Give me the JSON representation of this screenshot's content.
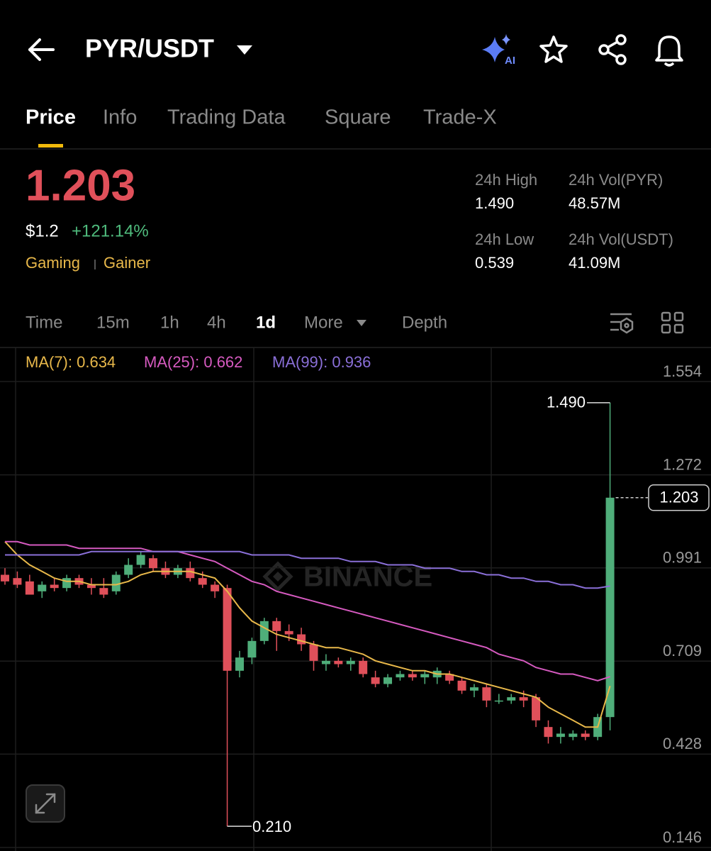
{
  "header": {
    "pair": "PYR/USDT",
    "ai_badge": "AI"
  },
  "tabs": [
    "Price",
    "Info",
    "Trading Data",
    "Square",
    "Trade-X"
  ],
  "ticker": {
    "price": "1.203",
    "usd_price": "$1.2",
    "change": "+121.14%",
    "tags": [
      "Gaming",
      "Gainer"
    ]
  },
  "stats": [
    {
      "label": "24h High",
      "value": "1.490"
    },
    {
      "label": "24h Vol(PYR)",
      "value": "48.57M"
    },
    {
      "label": "24h Low",
      "value": "0.539"
    },
    {
      "label": "24h Vol(USDT)",
      "value": "41.09M"
    }
  ],
  "intervals": [
    "Time",
    "15m",
    "1h",
    "4h",
    "1d",
    "More",
    "Depth"
  ],
  "chart_data": {
    "type": "candlestick",
    "watermark": "BINANCE",
    "up_color": "#4fae7a",
    "down_color": "#e0505a",
    "ylim": [
      0.146,
      1.554
    ],
    "yticks": [
      1.554,
      1.272,
      0.991,
      0.709,
      0.428,
      0.146
    ],
    "grid": true,
    "open": [
      0.97,
      0.96,
      0.95,
      0.92,
      0.94,
      0.93,
      0.96,
      0.94,
      0.93,
      0.92,
      0.97,
      1.0,
      1.02,
      0.99,
      0.97,
      0.99,
      0.96,
      0.94,
      0.93,
      0.68,
      0.72,
      0.77,
      0.83,
      0.8,
      0.79,
      0.76,
      0.7,
      0.71,
      0.7,
      0.71,
      0.66,
      0.64,
      0.66,
      0.67,
      0.66,
      0.66,
      0.67,
      0.65,
      0.62,
      0.63,
      0.59,
      0.59,
      0.6,
      0.6,
      0.51,
      0.48,
      0.48,
      0.49,
      0.48,
      0.54
    ],
    "high": [
      0.99,
      0.98,
      0.97,
      0.95,
      0.96,
      0.97,
      0.97,
      0.96,
      0.96,
      0.98,
      1.02,
      1.04,
      1.03,
      1.01,
      1.0,
      1.01,
      0.98,
      0.95,
      0.94,
      0.74,
      0.78,
      0.84,
      0.84,
      0.82,
      0.81,
      0.77,
      0.73,
      0.72,
      0.72,
      0.72,
      0.68,
      0.67,
      0.68,
      0.68,
      0.68,
      0.69,
      0.68,
      0.66,
      0.64,
      0.64,
      0.61,
      0.61,
      0.62,
      0.61,
      0.53,
      0.51,
      0.5,
      0.5,
      0.55,
      1.49
    ],
    "low": [
      0.94,
      0.93,
      0.91,
      0.9,
      0.92,
      0.92,
      0.93,
      0.91,
      0.9,
      0.91,
      0.96,
      0.99,
      0.98,
      0.96,
      0.96,
      0.95,
      0.93,
      0.9,
      0.21,
      0.66,
      0.7,
      0.76,
      0.74,
      0.77,
      0.74,
      0.68,
      0.68,
      0.69,
      0.68,
      0.66,
      0.63,
      0.63,
      0.65,
      0.65,
      0.64,
      0.64,
      0.64,
      0.61,
      0.6,
      0.57,
      0.58,
      0.58,
      0.57,
      0.51,
      0.46,
      0.46,
      0.47,
      0.47,
      0.47,
      0.5
    ],
    "close": [
      0.95,
      0.94,
      0.91,
      0.94,
      0.93,
      0.96,
      0.94,
      0.93,
      0.91,
      0.97,
      1.0,
      1.03,
      0.99,
      0.97,
      0.99,
      0.96,
      0.94,
      0.92,
      0.68,
      0.72,
      0.77,
      0.83,
      0.8,
      0.79,
      0.76,
      0.71,
      0.71,
      0.7,
      0.71,
      0.67,
      0.64,
      0.66,
      0.67,
      0.66,
      0.67,
      0.68,
      0.65,
      0.62,
      0.63,
      0.59,
      0.59,
      0.6,
      0.59,
      0.53,
      0.48,
      0.49,
      0.49,
      0.48,
      0.54,
      1.203
    ],
    "series": [
      {
        "name": "MA(7): 0.634",
        "color": "#e8b84a",
        "values": [
          1.07,
          1.03,
          1.0,
          0.98,
          0.96,
          0.95,
          0.95,
          0.94,
          0.94,
          0.94,
          0.95,
          0.97,
          0.98,
          0.98,
          0.98,
          0.98,
          0.97,
          0.96,
          0.92,
          0.87,
          0.83,
          0.81,
          0.79,
          0.78,
          0.77,
          0.76,
          0.75,
          0.75,
          0.74,
          0.73,
          0.71,
          0.7,
          0.69,
          0.68,
          0.68,
          0.67,
          0.67,
          0.66,
          0.65,
          0.64,
          0.63,
          0.62,
          0.61,
          0.6,
          0.57,
          0.55,
          0.53,
          0.51,
          0.51,
          0.634
        ]
      },
      {
        "name": "MA(25): 0.662",
        "color": "#d65ac0",
        "values": [
          1.07,
          1.07,
          1.06,
          1.06,
          1.06,
          1.06,
          1.05,
          1.05,
          1.05,
          1.05,
          1.05,
          1.05,
          1.04,
          1.04,
          1.04,
          1.03,
          1.02,
          1.01,
          0.99,
          0.97,
          0.95,
          0.94,
          0.92,
          0.91,
          0.9,
          0.89,
          0.88,
          0.87,
          0.86,
          0.85,
          0.84,
          0.83,
          0.82,
          0.81,
          0.8,
          0.79,
          0.78,
          0.77,
          0.76,
          0.75,
          0.73,
          0.72,
          0.71,
          0.69,
          0.68,
          0.67,
          0.67,
          0.66,
          0.65,
          0.662
        ]
      },
      {
        "name": "MA(99): 0.936",
        "color": "#8a6fd8",
        "values": [
          1.03,
          1.03,
          1.03,
          1.03,
          1.03,
          1.03,
          1.03,
          1.04,
          1.04,
          1.04,
          1.04,
          1.04,
          1.04,
          1.04,
          1.04,
          1.04,
          1.04,
          1.04,
          1.04,
          1.04,
          1.03,
          1.03,
          1.03,
          1.03,
          1.02,
          1.02,
          1.02,
          1.02,
          1.01,
          1.01,
          1.01,
          1.0,
          1.0,
          1.0,
          0.99,
          0.99,
          0.99,
          0.98,
          0.98,
          0.97,
          0.97,
          0.96,
          0.96,
          0.95,
          0.95,
          0.94,
          0.94,
          0.93,
          0.93,
          0.936
        ]
      }
    ],
    "max_label": {
      "value": 1.49,
      "label": "1.490"
    },
    "min_label": {
      "value": 0.21,
      "label": "0.210"
    },
    "last_price": 1.203
  }
}
